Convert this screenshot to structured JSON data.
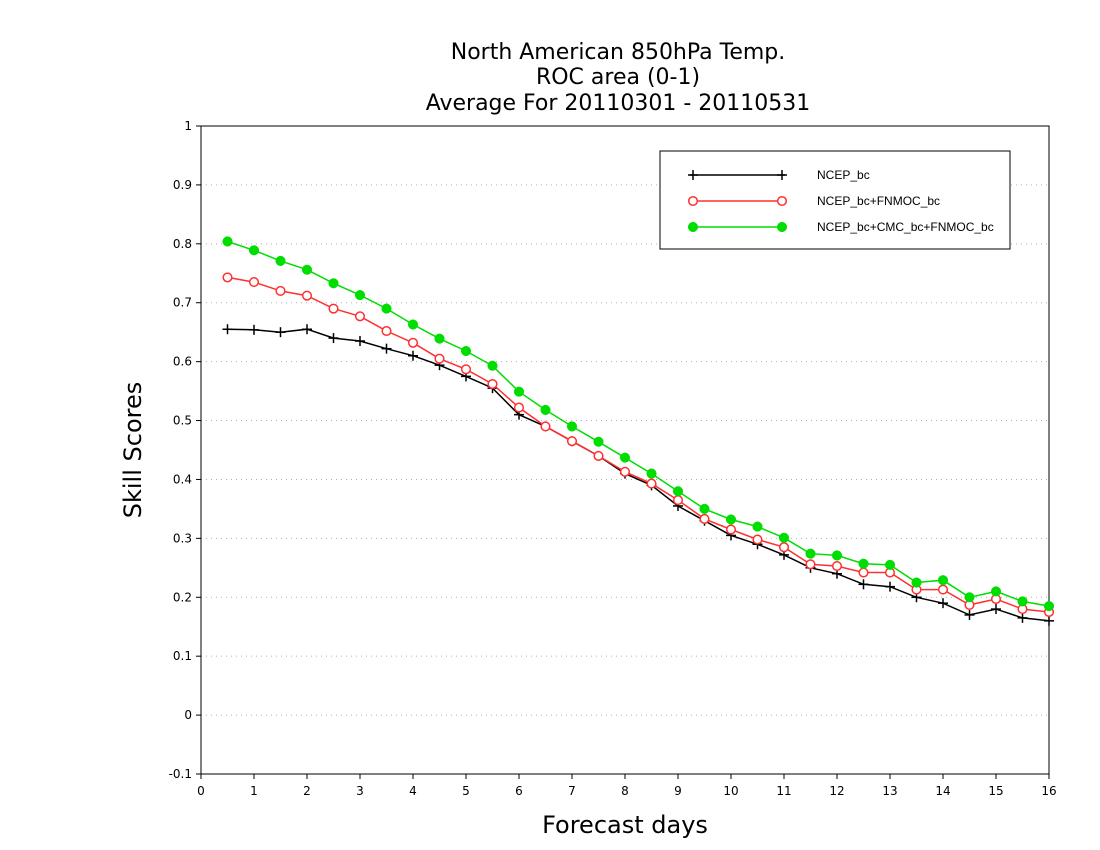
{
  "chart_data": {
    "type": "line",
    "title": [
      "North American 850hPa Temp.",
      "ROC area (0-1)",
      "Average For 20110301 - 20110531"
    ],
    "xlabel": "Forecast days",
    "ylabel": "Skill Scores",
    "xlim": [
      0,
      16
    ],
    "ylim": [
      -0.1,
      1
    ],
    "xticks": [
      "0",
      "1",
      "2",
      "3",
      "4",
      "5",
      "6",
      "7",
      "8",
      "9",
      "10",
      "11",
      "12",
      "13",
      "14",
      "15",
      "16"
    ],
    "yticks": [
      "-0.1",
      "0",
      "0.1",
      "0.2",
      "0.3",
      "0.4",
      "0.5",
      "0.6",
      "0.7",
      "0.8",
      "0.9",
      "1"
    ],
    "grid": true,
    "legend_position": "top-right",
    "x": [
      0.5,
      1,
      1.5,
      2,
      2.5,
      3,
      3.5,
      4,
      4.5,
      5,
      5.5,
      6,
      6.5,
      7,
      7.5,
      8,
      8.5,
      9,
      9.5,
      10,
      10.5,
      11,
      11.5,
      12,
      12.5,
      13,
      13.5,
      14,
      14.5,
      15,
      15.5,
      16
    ],
    "series": [
      {
        "name": "NCEP_bc",
        "color": "#000000",
        "marker": "plus",
        "values": [
          0.655,
          0.654,
          0.65,
          0.655,
          0.64,
          0.635,
          0.622,
          0.61,
          0.594,
          0.575,
          0.555,
          0.51,
          0.49,
          0.465,
          0.44,
          0.41,
          0.39,
          0.355,
          0.33,
          0.305,
          0.29,
          0.272,
          0.25,
          0.24,
          0.222,
          0.218,
          0.2,
          0.19,
          0.17,
          0.18,
          0.165,
          0.16
        ]
      },
      {
        "name": "NCEP_bc+FNMOC_bc",
        "color": "#ff3030",
        "marker": "open-circle",
        "values": [
          0.743,
          0.735,
          0.72,
          0.712,
          0.69,
          0.677,
          0.652,
          0.632,
          0.605,
          0.587,
          0.562,
          0.522,
          0.49,
          0.465,
          0.44,
          0.413,
          0.393,
          0.365,
          0.333,
          0.315,
          0.298,
          0.285,
          0.256,
          0.253,
          0.242,
          0.242,
          0.213,
          0.213,
          0.187,
          0.197,
          0.18,
          0.175
        ]
      },
      {
        "name": "NCEP_bc+CMC_bc+FNMOC_bc",
        "color": "#00dd00",
        "marker": "filled-circle",
        "values": [
          0.804,
          0.789,
          0.771,
          0.756,
          0.733,
          0.713,
          0.69,
          0.663,
          0.639,
          0.618,
          0.593,
          0.549,
          0.518,
          0.49,
          0.464,
          0.437,
          0.41,
          0.38,
          0.35,
          0.332,
          0.32,
          0.301,
          0.274,
          0.271,
          0.257,
          0.255,
          0.225,
          0.229,
          0.2,
          0.21,
          0.193,
          0.185
        ]
      }
    ]
  }
}
